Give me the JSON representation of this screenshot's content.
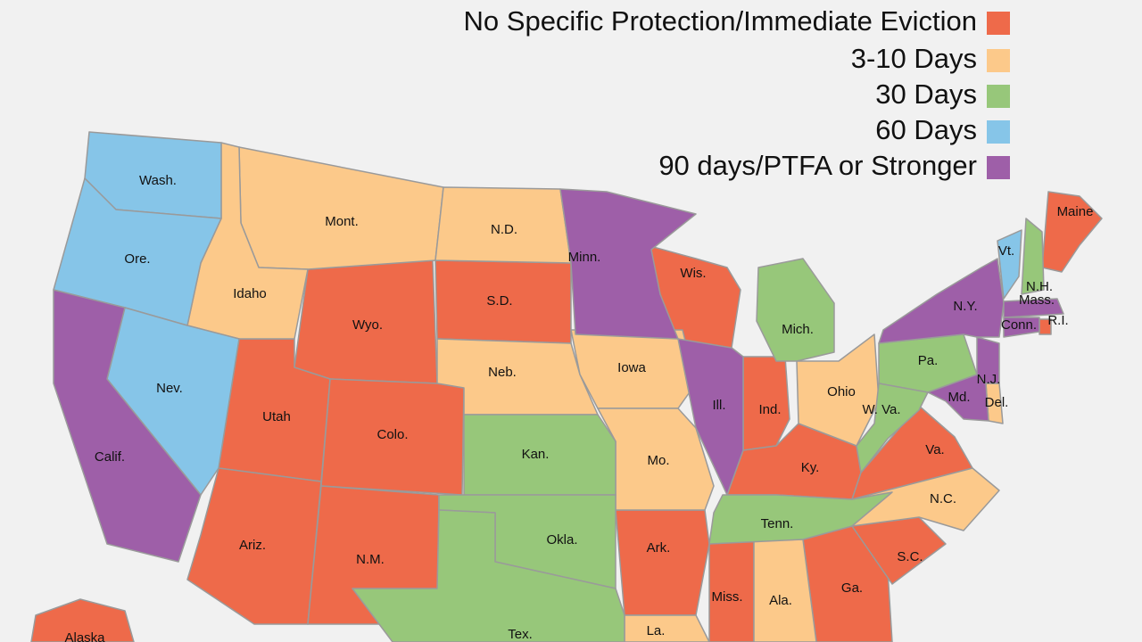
{
  "legend": [
    {
      "label": "No Specific Protection/Immediate Eviction",
      "color": "#ee6a4a",
      "states": [
        "Wyo.",
        "S.D.",
        "Utah",
        "Colo.",
        "Ariz.",
        "N.M.",
        "Wis.",
        "Ind.",
        "Ky.",
        "Va.",
        "Ark.",
        "Miss.",
        "Ga.",
        "S.C.",
        "Maine",
        "Alaska",
        "R.I."
      ]
    },
    {
      "label": "3-10 Days",
      "color": "#fcc98a",
      "states": [
        "Mont.",
        "Idaho",
        "N.D.",
        "Neb.",
        "Iowa",
        "Mo.",
        "Ohio",
        "N.C.",
        "Ala.",
        "La.",
        "Del."
      ]
    },
    {
      "label": "30 Days",
      "color": "#97c77a",
      "states": [
        "Kan.",
        "Okla.",
        "Tex.",
        "Tenn.",
        "Mich.",
        "Pa.",
        "W. Va.",
        "N.H."
      ]
    },
    {
      "label": "60 Days",
      "color": "#86c5e8",
      "states": [
        "Wash.",
        "Ore.",
        "Nev.",
        "Vt."
      ]
    },
    {
      "label": "90 days/PTFA or Stronger",
      "color": "#9e5fa8",
      "states": [
        "Minn.",
        "Ill.",
        "Calif.",
        "N.Y.",
        "Md.",
        "N.J.",
        "Mass.",
        "Conn."
      ]
    }
  ]
}
